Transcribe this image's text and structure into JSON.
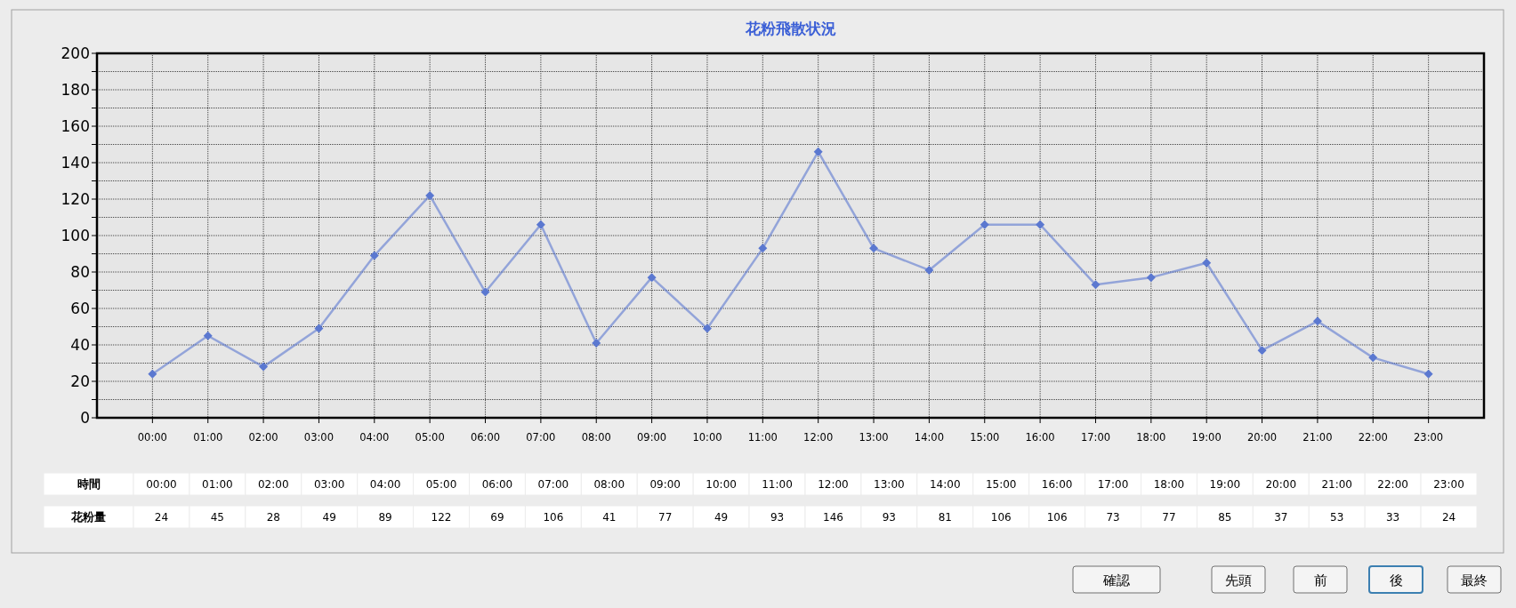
{
  "chart_data": {
    "type": "line",
    "title": "花粉飛散状況",
    "categories": [
      "00:00",
      "01:00",
      "02:00",
      "03:00",
      "04:00",
      "05:00",
      "06:00",
      "07:00",
      "08:00",
      "09:00",
      "10:00",
      "11:00",
      "12:00",
      "13:00",
      "14:00",
      "15:00",
      "16:00",
      "17:00",
      "18:00",
      "19:00",
      "20:00",
      "21:00",
      "22:00",
      "23:00"
    ],
    "series": [
      {
        "color": "#5b78d0",
        "values": [
          24,
          45,
          28,
          49,
          89,
          122,
          69,
          106,
          41,
          77,
          49,
          93,
          146,
          93,
          81,
          106,
          106,
          73,
          77,
          85,
          37,
          53,
          33,
          24
        ]
      }
    ],
    "ylim": [
      0,
      200
    ],
    "yticks": [
      0,
      {
        "value": 10,
        "label": null
      },
      20,
      {
        "value": 30,
        "label": null
      },
      40,
      {
        "value": 50,
        "label": null
      },
      60,
      {
        "value": 70,
        "label": null
      },
      80,
      {
        "value": 90,
        "label": null
      },
      100,
      {
        "value": 110,
        "label": null
      },
      120,
      {
        "value": 130,
        "label": null
      },
      140,
      {
        "value": 150,
        "label": null
      },
      160,
      {
        "value": 170,
        "label": null
      },
      180,
      {
        "value": 190,
        "label": null
      },
      200
    ],
    "grid": true,
    "marker": "diamond",
    "data_labels": true,
    "annotations": [
      "時間",
      "花粉量",
      "確認",
      "先頭",
      "前",
      "後",
      "最終"
    ]
  }
}
